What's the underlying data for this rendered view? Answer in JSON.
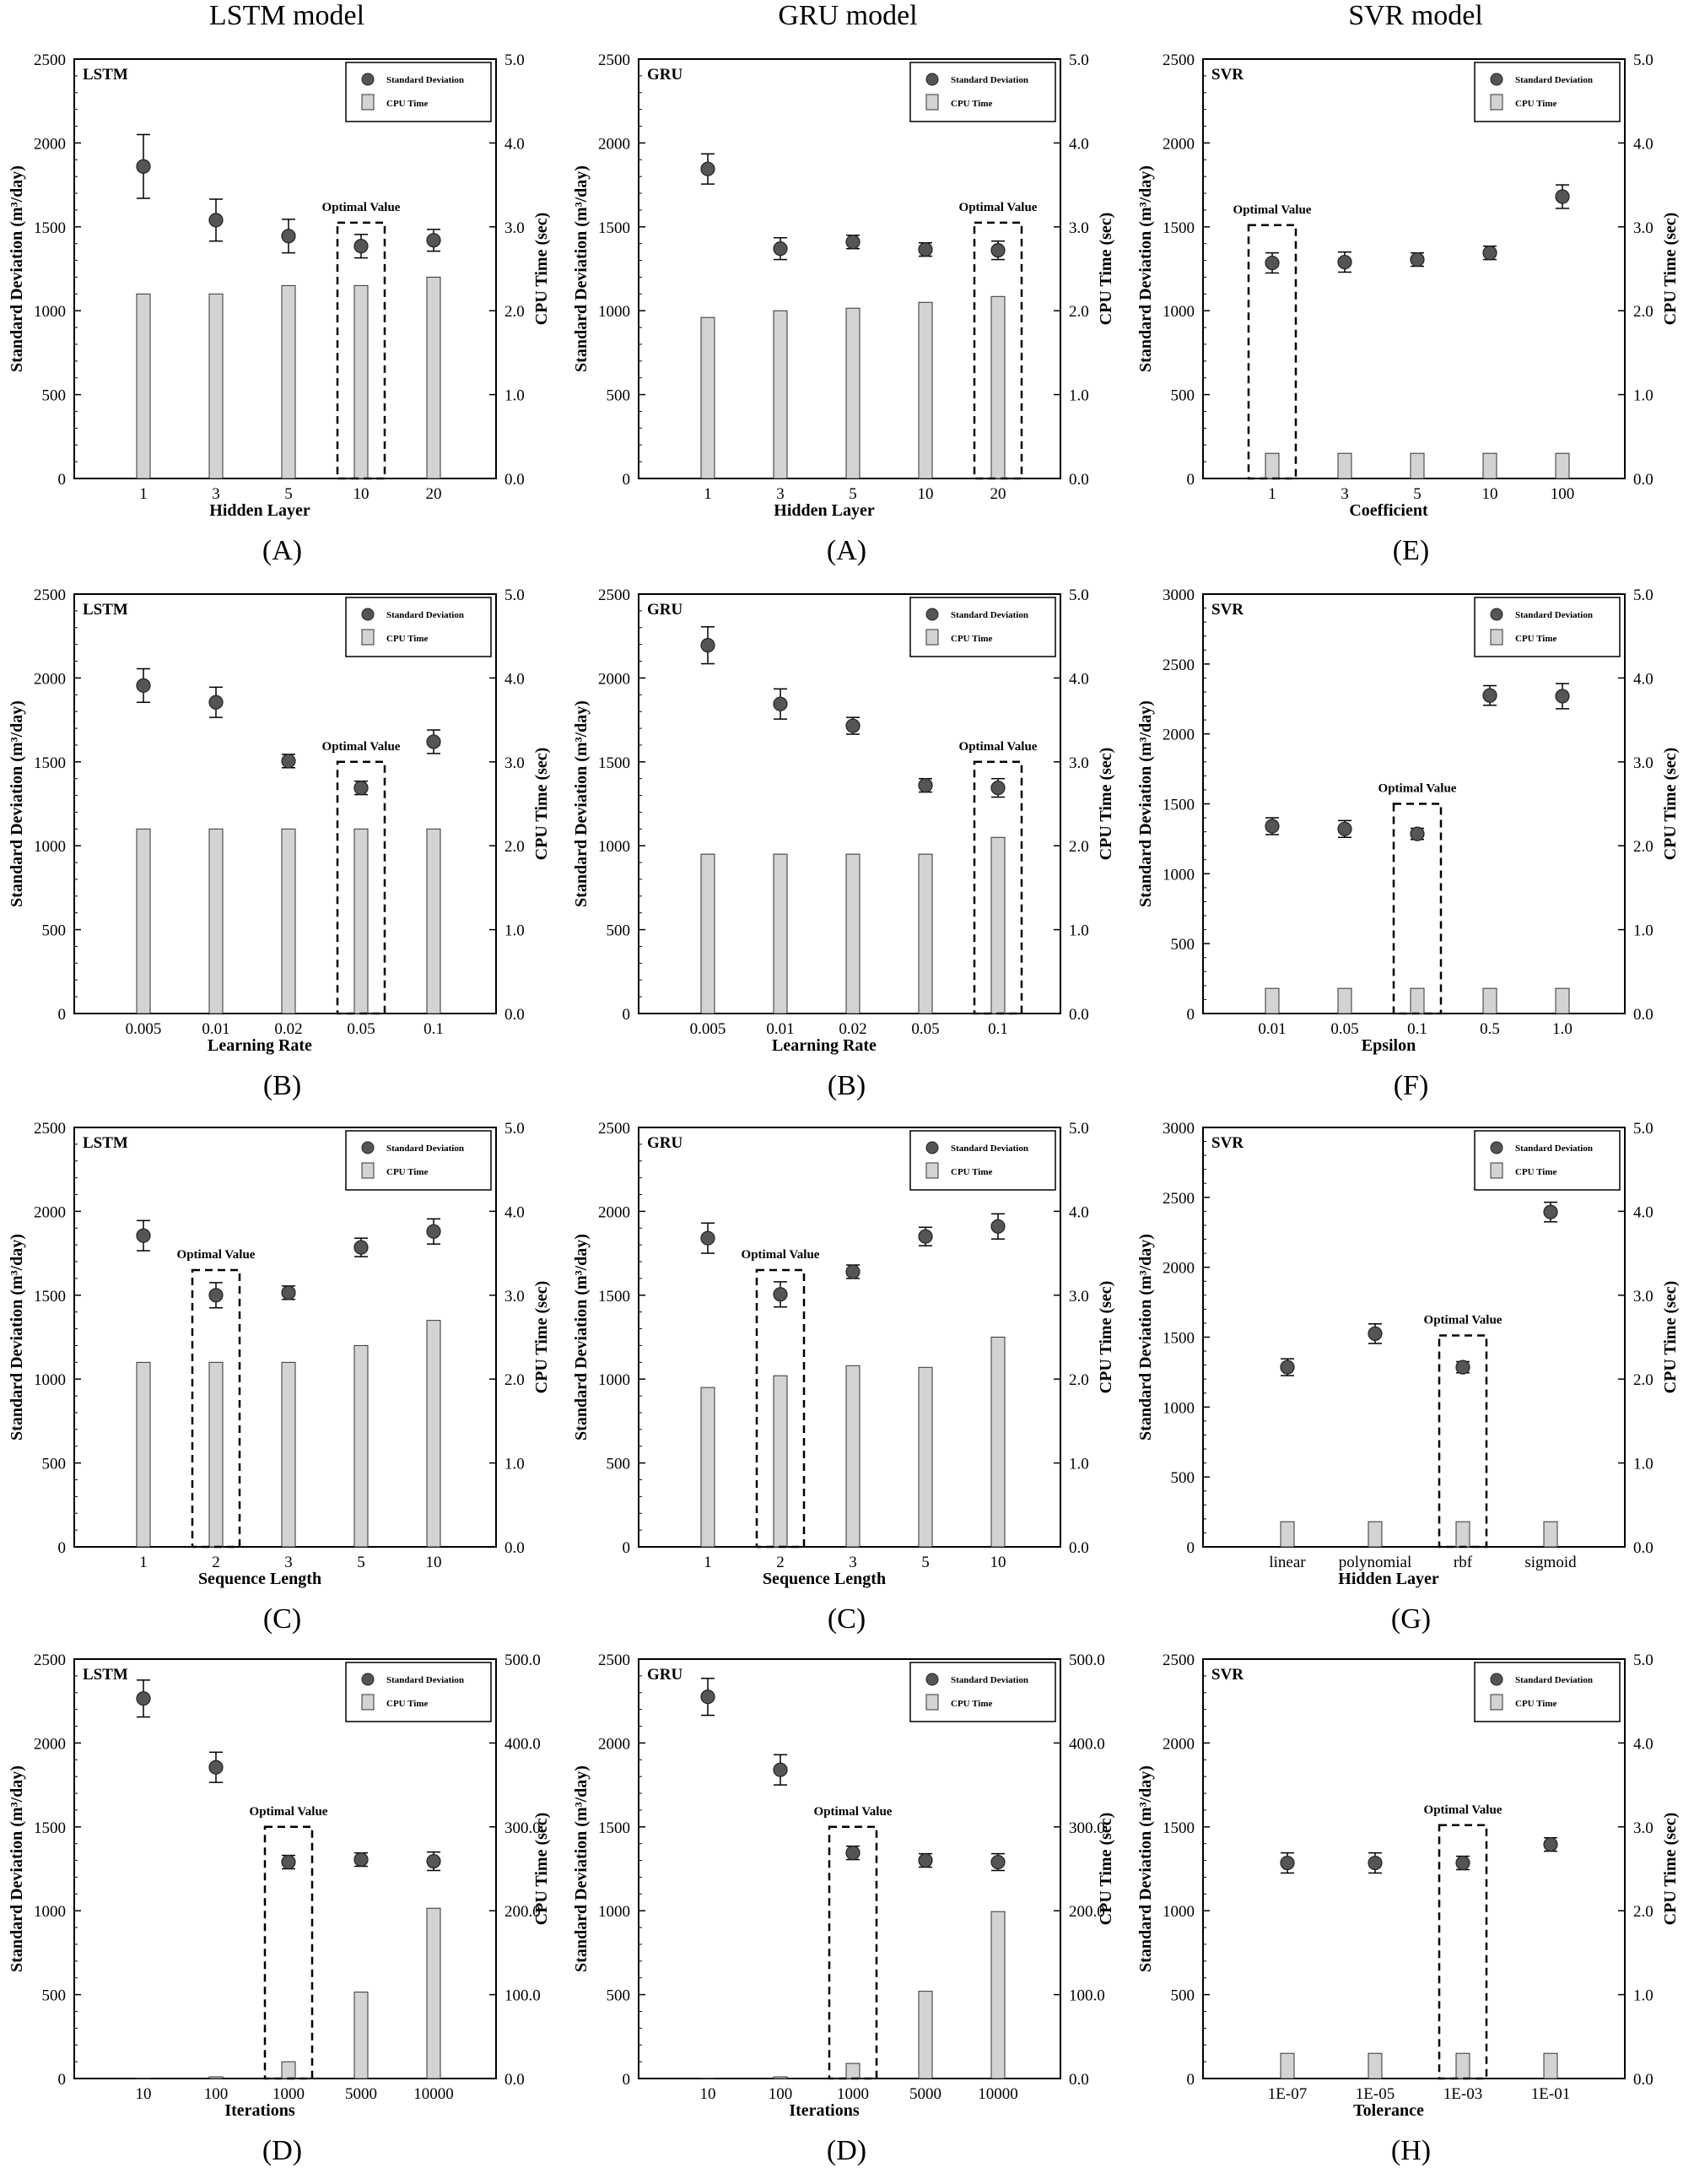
{
  "column_titles": [
    "LSTM model",
    "GRU model",
    "SVR model"
  ],
  "common": {
    "y_left_label": "Standard Deviation (m³/day)",
    "y_right_label": "CPU Time (sec)",
    "legend_sd": "Standard Deviation",
    "legend_cpu": "CPU Time",
    "optimal_label": "Optimal Value",
    "colors": {
      "bar": "#d3d3d3",
      "marker": "#555555",
      "axis": "#000000"
    }
  },
  "chart_data": [
    {
      "type": "bar",
      "tag": "LSTM",
      "caption": "(A)",
      "xlabel": "Hidden Layer",
      "categories": [
        "1",
        "3",
        "5",
        "10",
        "20"
      ],
      "sd": [
        1860,
        1540,
        1445,
        1385,
        1420
      ],
      "err": [
        190,
        125,
        100,
        70,
        65
      ],
      "cpu": [
        2.2,
        2.2,
        2.3,
        2.3,
        2.4
      ],
      "optimal": 3,
      "box_top": 3.05,
      "ylim": [
        0,
        2500
      ],
      "y2lim": [
        0,
        5.0
      ],
      "yticks": [
        0,
        500,
        1000,
        1500,
        2000,
        2500
      ],
      "y2ticks": [
        "0.0",
        "1.0",
        "2.0",
        "3.0",
        "4.0",
        "5.0"
      ]
    },
    {
      "type": "bar",
      "tag": "GRU",
      "caption": "(A)",
      "xlabel": "Hidden Layer",
      "categories": [
        "1",
        "3",
        "5",
        "10",
        "20"
      ],
      "sd": [
        1845,
        1370,
        1410,
        1365,
        1360
      ],
      "err": [
        90,
        65,
        40,
        40,
        55
      ],
      "cpu": [
        1.92,
        2.0,
        2.03,
        2.1,
        2.17
      ],
      "optimal": 4,
      "box_top": 3.05,
      "ylim": [
        0,
        2500
      ],
      "y2lim": [
        0,
        5.0
      ],
      "yticks": [
        0,
        500,
        1000,
        1500,
        2000,
        2500
      ],
      "y2ticks": [
        "0.0",
        "1.0",
        "2.0",
        "3.0",
        "4.0",
        "5.0"
      ]
    },
    {
      "type": "bar",
      "tag": "SVR",
      "caption": "(E)",
      "xlabel": "Coefficient",
      "categories": [
        "1",
        "3",
        "5",
        "10",
        "100"
      ],
      "sd": [
        1285,
        1290,
        1305,
        1345,
        1680
      ],
      "err": [
        60,
        60,
        40,
        40,
        70
      ],
      "cpu": [
        0.3,
        0.3,
        0.3,
        0.3,
        0.3
      ],
      "optimal": 0,
      "box_top": 3.02,
      "ylim": [
        0,
        2500
      ],
      "y2lim": [
        0,
        5.0
      ],
      "yticks": [
        0,
        500,
        1000,
        1500,
        2000,
        2500
      ],
      "y2ticks": [
        "0.0",
        "1.0",
        "2.0",
        "3.0",
        "4.0",
        "5.0"
      ]
    },
    {
      "type": "bar",
      "tag": "LSTM",
      "caption": "(B)",
      "xlabel": "Learning Rate",
      "categories": [
        "0.005",
        "0.01",
        "0.02",
        "0.05",
        "0.1"
      ],
      "sd": [
        1955,
        1855,
        1505,
        1345,
        1620
      ],
      "err": [
        100,
        90,
        40,
        40,
        70
      ],
      "cpu": [
        2.2,
        2.2,
        2.2,
        2.2,
        2.2
      ],
      "optimal": 3,
      "box_top": 3.0,
      "ylim": [
        0,
        2500
      ],
      "y2lim": [
        0,
        5.0
      ],
      "yticks": [
        0,
        500,
        1000,
        1500,
        2000,
        2500
      ],
      "y2ticks": [
        "0.0",
        "1.0",
        "2.0",
        "3.0",
        "4.0",
        "5.0"
      ]
    },
    {
      "type": "bar",
      "tag": "GRU",
      "caption": "(B)",
      "xlabel": "Learning Rate",
      "categories": [
        "0.005",
        "0.01",
        "0.02",
        "0.05",
        "0.1"
      ],
      "sd": [
        2195,
        1845,
        1715,
        1360,
        1345
      ],
      "err": [
        110,
        90,
        50,
        40,
        55
      ],
      "cpu": [
        1.9,
        1.9,
        1.9,
        1.9,
        2.1
      ],
      "optimal": 4,
      "box_top": 3.0,
      "ylim": [
        0,
        2500
      ],
      "y2lim": [
        0,
        5.0
      ],
      "yticks": [
        0,
        500,
        1000,
        1500,
        2000,
        2500
      ],
      "y2ticks": [
        "0.0",
        "1.0",
        "2.0",
        "3.0",
        "4.0",
        "5.0"
      ]
    },
    {
      "type": "bar",
      "tag": "SVR",
      "caption": "(F)",
      "xlabel": "Epsilon",
      "categories": [
        "0.01",
        "0.05",
        "0.1",
        "0.5",
        "1.0"
      ],
      "sd": [
        1340,
        1320,
        1285,
        2275,
        2270
      ],
      "err": [
        60,
        60,
        40,
        70,
        90
      ],
      "cpu": [
        0.3,
        0.3,
        0.3,
        0.3,
        0.3
      ],
      "optimal": 2,
      "box_top": 2.5,
      "ylim": [
        0,
        3000
      ],
      "y2lim": [
        0,
        5.0
      ],
      "yticks": [
        0,
        500,
        1000,
        1500,
        2000,
        2500,
        3000
      ],
      "y2ticks": [
        "0.0",
        "1.0",
        "2.0",
        "3.0",
        "4.0",
        "5.0"
      ]
    },
    {
      "type": "bar",
      "tag": "LSTM",
      "caption": "(C)",
      "xlabel": "Sequence Length",
      "categories": [
        "1",
        "2",
        "3",
        "5",
        "10"
      ],
      "sd": [
        1855,
        1500,
        1515,
        1785,
        1880
      ],
      "err": [
        90,
        75,
        40,
        55,
        75
      ],
      "cpu": [
        2.2,
        2.2,
        2.2,
        2.4,
        2.7
      ],
      "optimal": 1,
      "box_top": 3.3,
      "ylim": [
        0,
        2500
      ],
      "y2lim": [
        0,
        5.0
      ],
      "yticks": [
        0,
        500,
        1000,
        1500,
        2000,
        2500
      ],
      "y2ticks": [
        "0.0",
        "1.0",
        "2.0",
        "3.0",
        "4.0",
        "5.0"
      ]
    },
    {
      "type": "bar",
      "tag": "GRU",
      "caption": "(C)",
      "xlabel": "Sequence Length",
      "categories": [
        "1",
        "2",
        "3",
        "5",
        "10"
      ],
      "sd": [
        1840,
        1505,
        1640,
        1850,
        1910
      ],
      "err": [
        90,
        75,
        40,
        55,
        75
      ],
      "cpu": [
        1.9,
        2.04,
        2.16,
        2.14,
        2.5
      ],
      "optimal": 1,
      "box_top": 3.3,
      "ylim": [
        0,
        2500
      ],
      "y2lim": [
        0,
        5.0
      ],
      "yticks": [
        0,
        500,
        1000,
        1500,
        2000,
        2500
      ],
      "y2ticks": [
        "0.0",
        "1.0",
        "2.0",
        "3.0",
        "4.0",
        "5.0"
      ]
    },
    {
      "type": "bar",
      "tag": "SVR",
      "caption": "(G)",
      "xlabel": "Hidden Layer",
      "categories": [
        "linear",
        "polynomial",
        "rbf",
        "sigmoid"
      ],
      "sd": [
        1285,
        1525,
        1285,
        2395
      ],
      "err": [
        60,
        70,
        40,
        70
      ],
      "cpu": [
        0.3,
        0.3,
        0.3,
        0.3
      ],
      "optimal": 2,
      "box_top": 2.52,
      "ylim": [
        0,
        3000
      ],
      "y2lim": [
        0,
        5.0
      ],
      "yticks": [
        0,
        500,
        1000,
        1500,
        2000,
        2500,
        3000
      ],
      "y2ticks": [
        "0.0",
        "1.0",
        "2.0",
        "3.0",
        "4.0",
        "5.0"
      ]
    },
    {
      "type": "bar",
      "tag": "LSTM",
      "caption": "(D)",
      "xlabel": "Iterations",
      "categories": [
        "10",
        "100",
        "1000",
        "5000",
        "10000"
      ],
      "sd": [
        2265,
        1855,
        1290,
        1305,
        1295
      ],
      "err": [
        110,
        90,
        40,
        40,
        55
      ],
      "cpu": [
        0.5,
        2,
        20,
        103,
        203
      ],
      "optimal": 2,
      "box_top": 300,
      "ylim": [
        0,
        2500
      ],
      "y2lim": [
        0,
        500.0
      ],
      "yticks": [
        0,
        500,
        1000,
        1500,
        2000,
        2500
      ],
      "y2ticks": [
        "0.0",
        "100.0",
        "200.0",
        "300.0",
        "400.0",
        "500.0"
      ]
    },
    {
      "type": "bar",
      "tag": "GRU",
      "caption": "(D)",
      "xlabel": "Iterations",
      "categories": [
        "10",
        "100",
        "1000",
        "5000",
        "10000"
      ],
      "sd": [
        2275,
        1840,
        1345,
        1300,
        1290
      ],
      "err": [
        110,
        90,
        40,
        40,
        50
      ],
      "cpu": [
        0.5,
        2,
        18,
        104,
        199
      ],
      "optimal": 2,
      "box_top": 300,
      "ylim": [
        0,
        2500
      ],
      "y2lim": [
        0,
        500.0
      ],
      "yticks": [
        0,
        500,
        1000,
        1500,
        2000,
        2500
      ],
      "y2ticks": [
        "0.0",
        "100.0",
        "200.0",
        "300.0",
        "400.0",
        "500.0"
      ]
    },
    {
      "type": "bar",
      "tag": "SVR",
      "caption": "(H)",
      "xlabel": "Tolerance",
      "categories": [
        "1E-07",
        "1E-05",
        "1E-03",
        "1E-01"
      ],
      "sd": [
        1285,
        1285,
        1285,
        1395
      ],
      "err": [
        60,
        60,
        40,
        40
      ],
      "cpu": [
        0.3,
        0.3,
        0.3,
        0.3
      ],
      "optimal": 2,
      "box_top": 3.02,
      "ylim": [
        0,
        2500
      ],
      "y2lim": [
        0,
        5.0
      ],
      "yticks": [
        0,
        500,
        1000,
        1500,
        2000,
        2500
      ],
      "y2ticks": [
        "0.0",
        "1.0",
        "2.0",
        "3.0",
        "4.0",
        "5.0"
      ]
    }
  ]
}
